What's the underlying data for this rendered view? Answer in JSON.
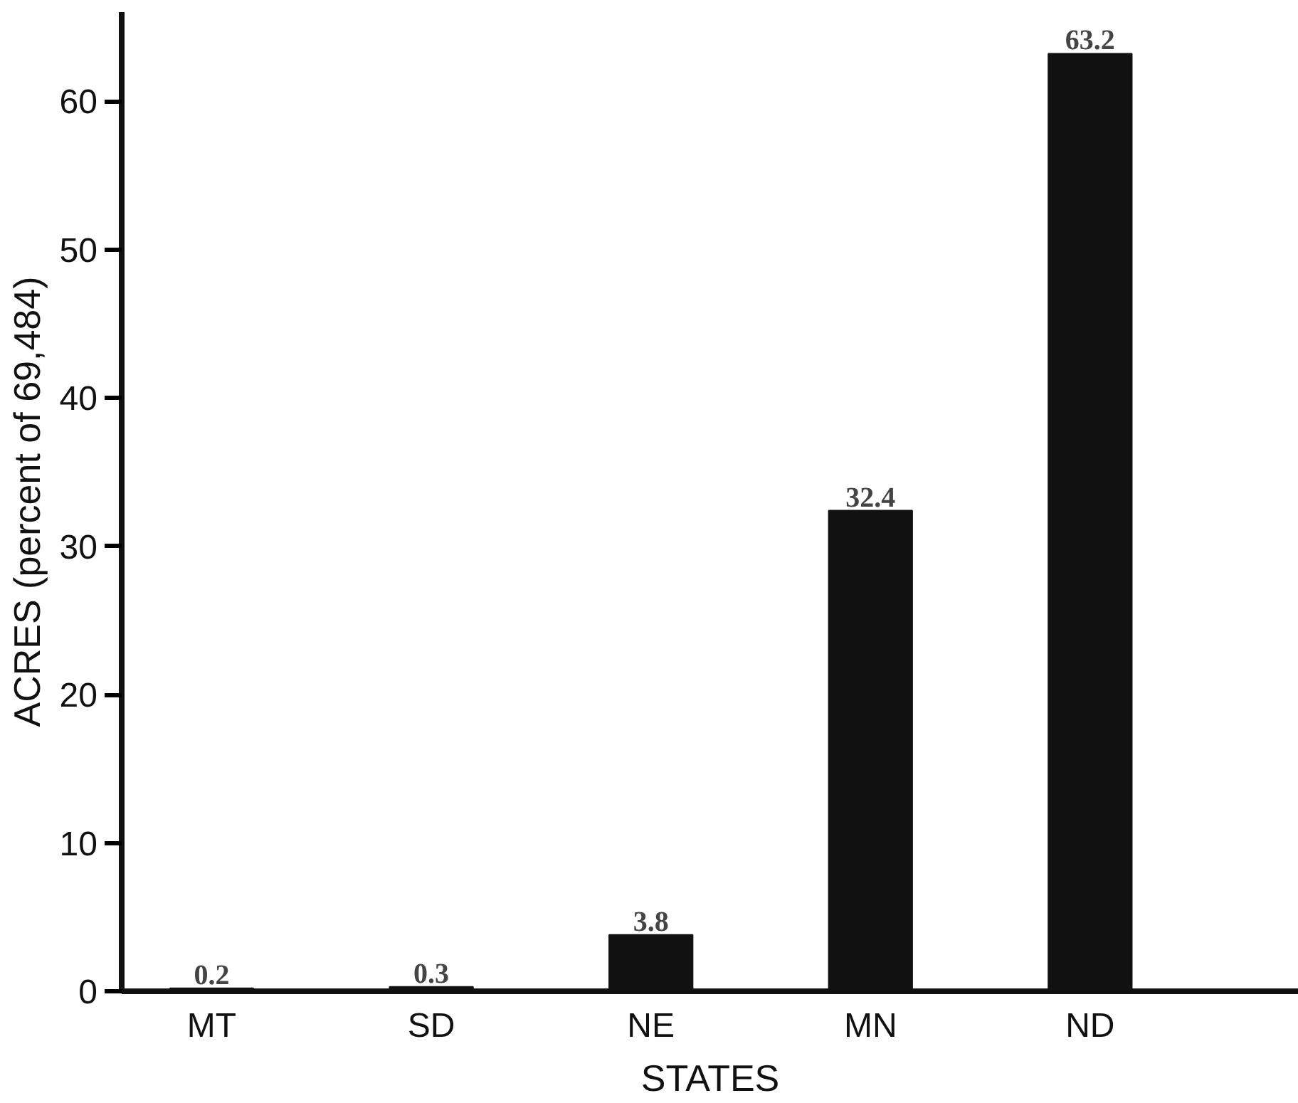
{
  "chart_data": {
    "type": "bar",
    "xlabel": "STATES",
    "ylabel": "ACRES (percent of 69,484)",
    "categories": [
      "MT",
      "SD",
      "NE",
      "MN",
      "ND"
    ],
    "values": [
      0.2,
      0.3,
      3.8,
      32.4,
      63.2
    ],
    "color": "#111111",
    "ylim": [
      0,
      66
    ],
    "yticks": [
      0,
      10,
      20,
      30,
      40,
      50,
      60
    ],
    "grid": false,
    "data_labels": true
  }
}
